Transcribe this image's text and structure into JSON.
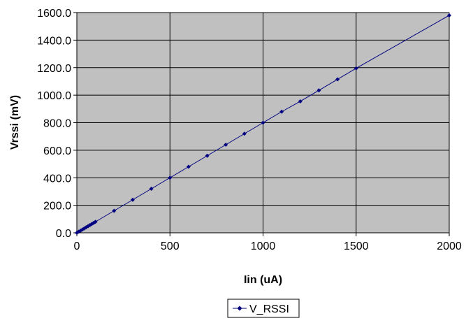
{
  "chart_data": {
    "type": "scatter",
    "xlabel": "Iin (uA)",
    "ylabel": "Vrssi (mV)",
    "xlim": [
      0,
      2000
    ],
    "ylim": [
      0,
      1600
    ],
    "x_ticks": [
      "0",
      "500",
      "1000",
      "1500",
      "2000"
    ],
    "y_ticks": [
      "0.0",
      "200.0",
      "400.0",
      "600.0",
      "800.0",
      "1000.0",
      "1200.0",
      "1400.0",
      "1600.0"
    ],
    "grid": true,
    "legend_position": "bottom",
    "colors": {
      "series": "#000080",
      "plot_background": "#c0c0c0",
      "grid": "#000000"
    },
    "series": [
      {
        "name": "V_RSSI",
        "x": [
          0,
          10,
          20,
          30,
          40,
          50,
          60,
          70,
          80,
          90,
          100,
          200,
          300,
          400,
          500,
          600,
          700,
          800,
          900,
          1000,
          1100,
          1200,
          1300,
          1400,
          1500,
          2000
        ],
        "y": [
          0,
          8,
          16,
          24,
          32,
          40,
          48,
          56,
          64,
          72,
          80,
          160,
          240,
          320,
          400,
          480,
          560,
          640,
          720,
          800,
          880,
          955,
          1035,
          1115,
          1195,
          1580
        ]
      }
    ]
  }
}
